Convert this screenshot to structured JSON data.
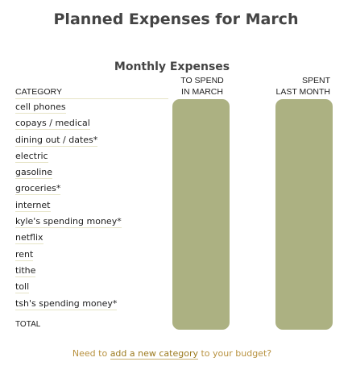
{
  "page_title": "Planned Expenses for March",
  "table": {
    "title": "Monthly Expenses",
    "headers": {
      "category": "CATEGORY",
      "to_spend": [
        "TO SPEND",
        "IN MARCH"
      ],
      "spent": [
        "SPENT",
        "LAST MONTH"
      ]
    },
    "rows": [
      "cell phones",
      "copays / medical",
      "dining out / dates*",
      "electric",
      "gasoline",
      "groceries*",
      "internet",
      "kyle's spending money*",
      "netflix",
      "rent",
      "tithe",
      "toll",
      "tsh's spending money*"
    ],
    "total_label": "TOTAL",
    "bar_color": "#acb182"
  },
  "footer": {
    "prefix": "Need to ",
    "link": "add a new category",
    "suffix": " to your budget?"
  }
}
